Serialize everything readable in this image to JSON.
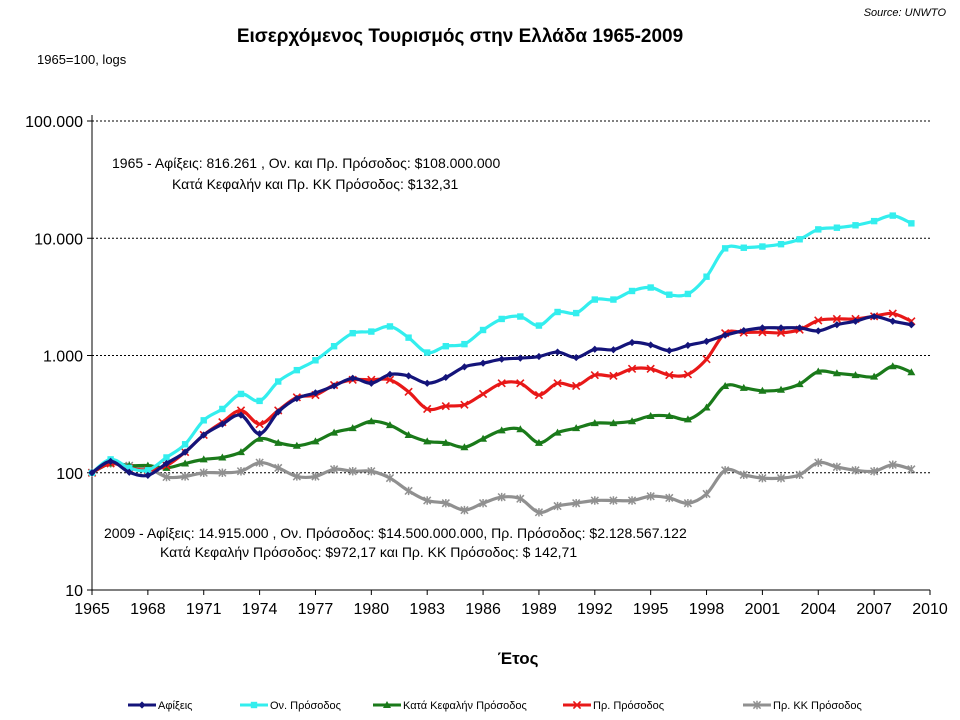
{
  "chart_data": {
    "type": "line",
    "title": "Εισερχόμενος Τουρισμός στην Ελλάδα 1965-2009",
    "source": "Source: UNWTO",
    "note": "1965=100, logs",
    "xlabel": "Έτος",
    "ylabel": "",
    "y_scale": "log",
    "ylim": [
      10,
      100000
    ],
    "xlim": [
      1965,
      2010
    ],
    "y_ticks": [
      10,
      100,
      1000,
      10000,
      100000
    ],
    "y_tick_labels": [
      "10",
      "100",
      "1.000",
      "10.000",
      "100.000"
    ],
    "x_ticks": [
      1965,
      1968,
      1971,
      1974,
      1977,
      1980,
      1983,
      1986,
      1989,
      1992,
      1995,
      1998,
      2001,
      2004,
      2007,
      2010
    ],
    "x_tick_labels": [
      "1965",
      "1968",
      "1971",
      "1974",
      "1977",
      "1980",
      "1983",
      "1986",
      "1989",
      "1992",
      "1995",
      "1998",
      "2001",
      "2004",
      "2007",
      "2010"
    ],
    "grid": "horizontal dashed",
    "legend_position": "bottom",
    "annotations": {
      "top_line1": "1965 - Αφίξεις: 816.261 , Ον. και Πρ. Πρόσοδος: $108.000.000",
      "top_line2": "Κατά Κεφαλήν και Πρ. ΚΚ Πρόσοδος: $132,31",
      "bottom_line1": "2009 - Αφίξεις: 14.915.000 , Ον. Πρόσοδος: $14.500.000.000, Πρ. Πρόσοδος: $2.128.567.122",
      "bottom_line2": "Κατά Κεφαλήν Πρόσοδος: $972,17 και Πρ. ΚΚ Πρόσοδος: $ 142,71"
    },
    "x": [
      1965,
      1966,
      1967,
      1968,
      1969,
      1970,
      1971,
      1972,
      1973,
      1974,
      1975,
      1976,
      1977,
      1978,
      1979,
      1980,
      1981,
      1982,
      1983,
      1984,
      1985,
      1986,
      1987,
      1988,
      1989,
      1990,
      1991,
      1992,
      1993,
      1994,
      1995,
      1996,
      1997,
      1998,
      1999,
      2000,
      2001,
      2002,
      2003,
      2004,
      2005,
      2006,
      2007,
      2008,
      2009
    ],
    "series": [
      {
        "name": "Αφίξεις",
        "color": "#14147a",
        "marker": "diamond",
        "values": [
          100,
          125,
          101,
          95,
          120,
          150,
          210,
          260,
          310,
          215,
          330,
          430,
          480,
          550,
          640,
          580,
          690,
          670,
          580,
          650,
          800,
          860,
          930,
          950,
          980,
          1070,
          960,
          1130,
          1120,
          1290,
          1230,
          1100,
          1220,
          1320,
          1490,
          1630,
          1720,
          1720,
          1720,
          1620,
          1830,
          1960,
          2150,
          1960,
          1830
        ]
      },
      {
        "name": "Ον. Πρόσοδος",
        "color": "#33eeee",
        "marker": "square",
        "values": [
          100,
          130,
          110,
          105,
          135,
          175,
          280,
          350,
          470,
          410,
          600,
          750,
          910,
          1200,
          1550,
          1600,
          1770,
          1420,
          1060,
          1200,
          1250,
          1650,
          2050,
          2150,
          1800,
          2350,
          2300,
          3000,
          3000,
          3550,
          3800,
          3300,
          3350,
          4700,
          8200,
          8300,
          8500,
          8900,
          9800,
          11900,
          12300,
          12900,
          14000,
          15600,
          13400
        ]
      },
      {
        "name": "Κατά Κεφαλήν Πρόσοδος",
        "color": "#1a7a1a",
        "marker": "triangle",
        "values": [
          100,
          120,
          115,
          115,
          110,
          120,
          130,
          135,
          150,
          195,
          180,
          170,
          185,
          220,
          240,
          275,
          255,
          210,
          185,
          180,
          165,
          195,
          230,
          235,
          180,
          220,
          240,
          265,
          265,
          275,
          305,
          305,
          285,
          360,
          550,
          530,
          500,
          510,
          570,
          730,
          705,
          680,
          660,
          810,
          720
        ]
      },
      {
        "name": "Πρ. Πρόσοδος",
        "color": "#e81818",
        "marker": "x",
        "values": [
          100,
          120,
          110,
          105,
          115,
          150,
          210,
          270,
          340,
          260,
          340,
          440,
          460,
          560,
          620,
          620,
          620,
          490,
          350,
          370,
          380,
          470,
          580,
          580,
          460,
          580,
          550,
          680,
          670,
          770,
          770,
          680,
          690,
          930,
          1550,
          1570,
          1580,
          1560,
          1660,
          1990,
          2050,
          2050,
          2160,
          2280,
          1960
        ]
      },
      {
        "name": "Πρ. ΚΚ Πρόσοδος",
        "color": "#909090",
        "marker": "star",
        "values": [
          100,
          120,
          115,
          110,
          92,
          93,
          100,
          100,
          103,
          122,
          110,
          93,
          93,
          107,
          103,
          103,
          90,
          70,
          58,
          55,
          48,
          55,
          62,
          60,
          46,
          52,
          55,
          58,
          58,
          58,
          63,
          61,
          55,
          66,
          105,
          96,
          90,
          90,
          96,
          122,
          112,
          105,
          103,
          117,
          107
        ]
      }
    ]
  }
}
